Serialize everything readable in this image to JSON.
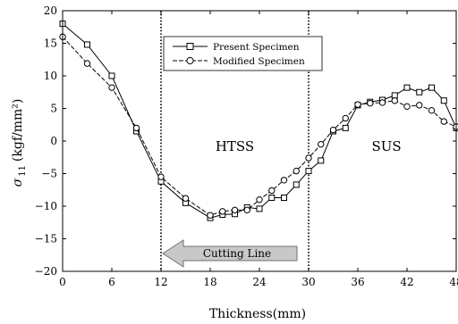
{
  "chart_data": {
    "type": "line",
    "xlabel": "Thickness(mm)",
    "ylabel_main": "σ",
    "ylabel_sub": "11",
    "ylabel_unit": "(kgf/mm²)",
    "xlim": [
      0,
      48
    ],
    "ylim": [
      -20,
      20
    ],
    "xticks": [
      0,
      6,
      12,
      18,
      24,
      30,
      36,
      42,
      48
    ],
    "yticks": [
      -20,
      -15,
      -10,
      -5,
      0,
      5,
      10,
      15,
      20
    ],
    "vlines": [
      12,
      30
    ],
    "regions": [
      {
        "label": "HTSS",
        "x": 21,
        "y": -0.8
      },
      {
        "label": "SUS",
        "x": 39.5,
        "y": -0.8
      }
    ],
    "annotation": {
      "label": "Cutting Line",
      "direction": "left"
    },
    "legend_position": "top-center",
    "series": [
      {
        "name": "Present Specimen",
        "marker": "square",
        "x": [
          0,
          3,
          6,
          9,
          12,
          15,
          18,
          19.5,
          21,
          22.5,
          24,
          25.5,
          27,
          28.5,
          30,
          31.5,
          33,
          34.5,
          36,
          37.5,
          39,
          40.5,
          42,
          43.5,
          45,
          46.5,
          48
        ],
        "y": [
          18,
          14.8,
          10,
          1.5,
          -6.2,
          -9.5,
          -11.8,
          -11.3,
          -11.2,
          -10.2,
          -10.4,
          -8.7,
          -8.7,
          -6.7,
          -4.6,
          -3,
          1.5,
          2,
          5.5,
          6,
          6.3,
          7,
          8.2,
          7.5,
          8.2,
          6.2,
          2
        ]
      },
      {
        "name": "Modified Specimen",
        "marker": "circle",
        "x": [
          0,
          3,
          6,
          9,
          12,
          15,
          18,
          19.5,
          21,
          22.5,
          24,
          25.5,
          27,
          28.5,
          30,
          31.5,
          33,
          34.5,
          36,
          37.5,
          39,
          40.5,
          42,
          43.5,
          45,
          46.5,
          48
        ],
        "y": [
          16,
          11.9,
          8.2,
          2,
          -5.5,
          -8.8,
          -11.4,
          -10.8,
          -10.6,
          -10.6,
          -9,
          -7.6,
          -6,
          -4.6,
          -2.6,
          -0.5,
          1.7,
          3.5,
          5.6,
          5.8,
          5.9,
          6.2,
          5.3,
          5.5,
          4.7,
          3,
          2.2
        ]
      }
    ]
  }
}
